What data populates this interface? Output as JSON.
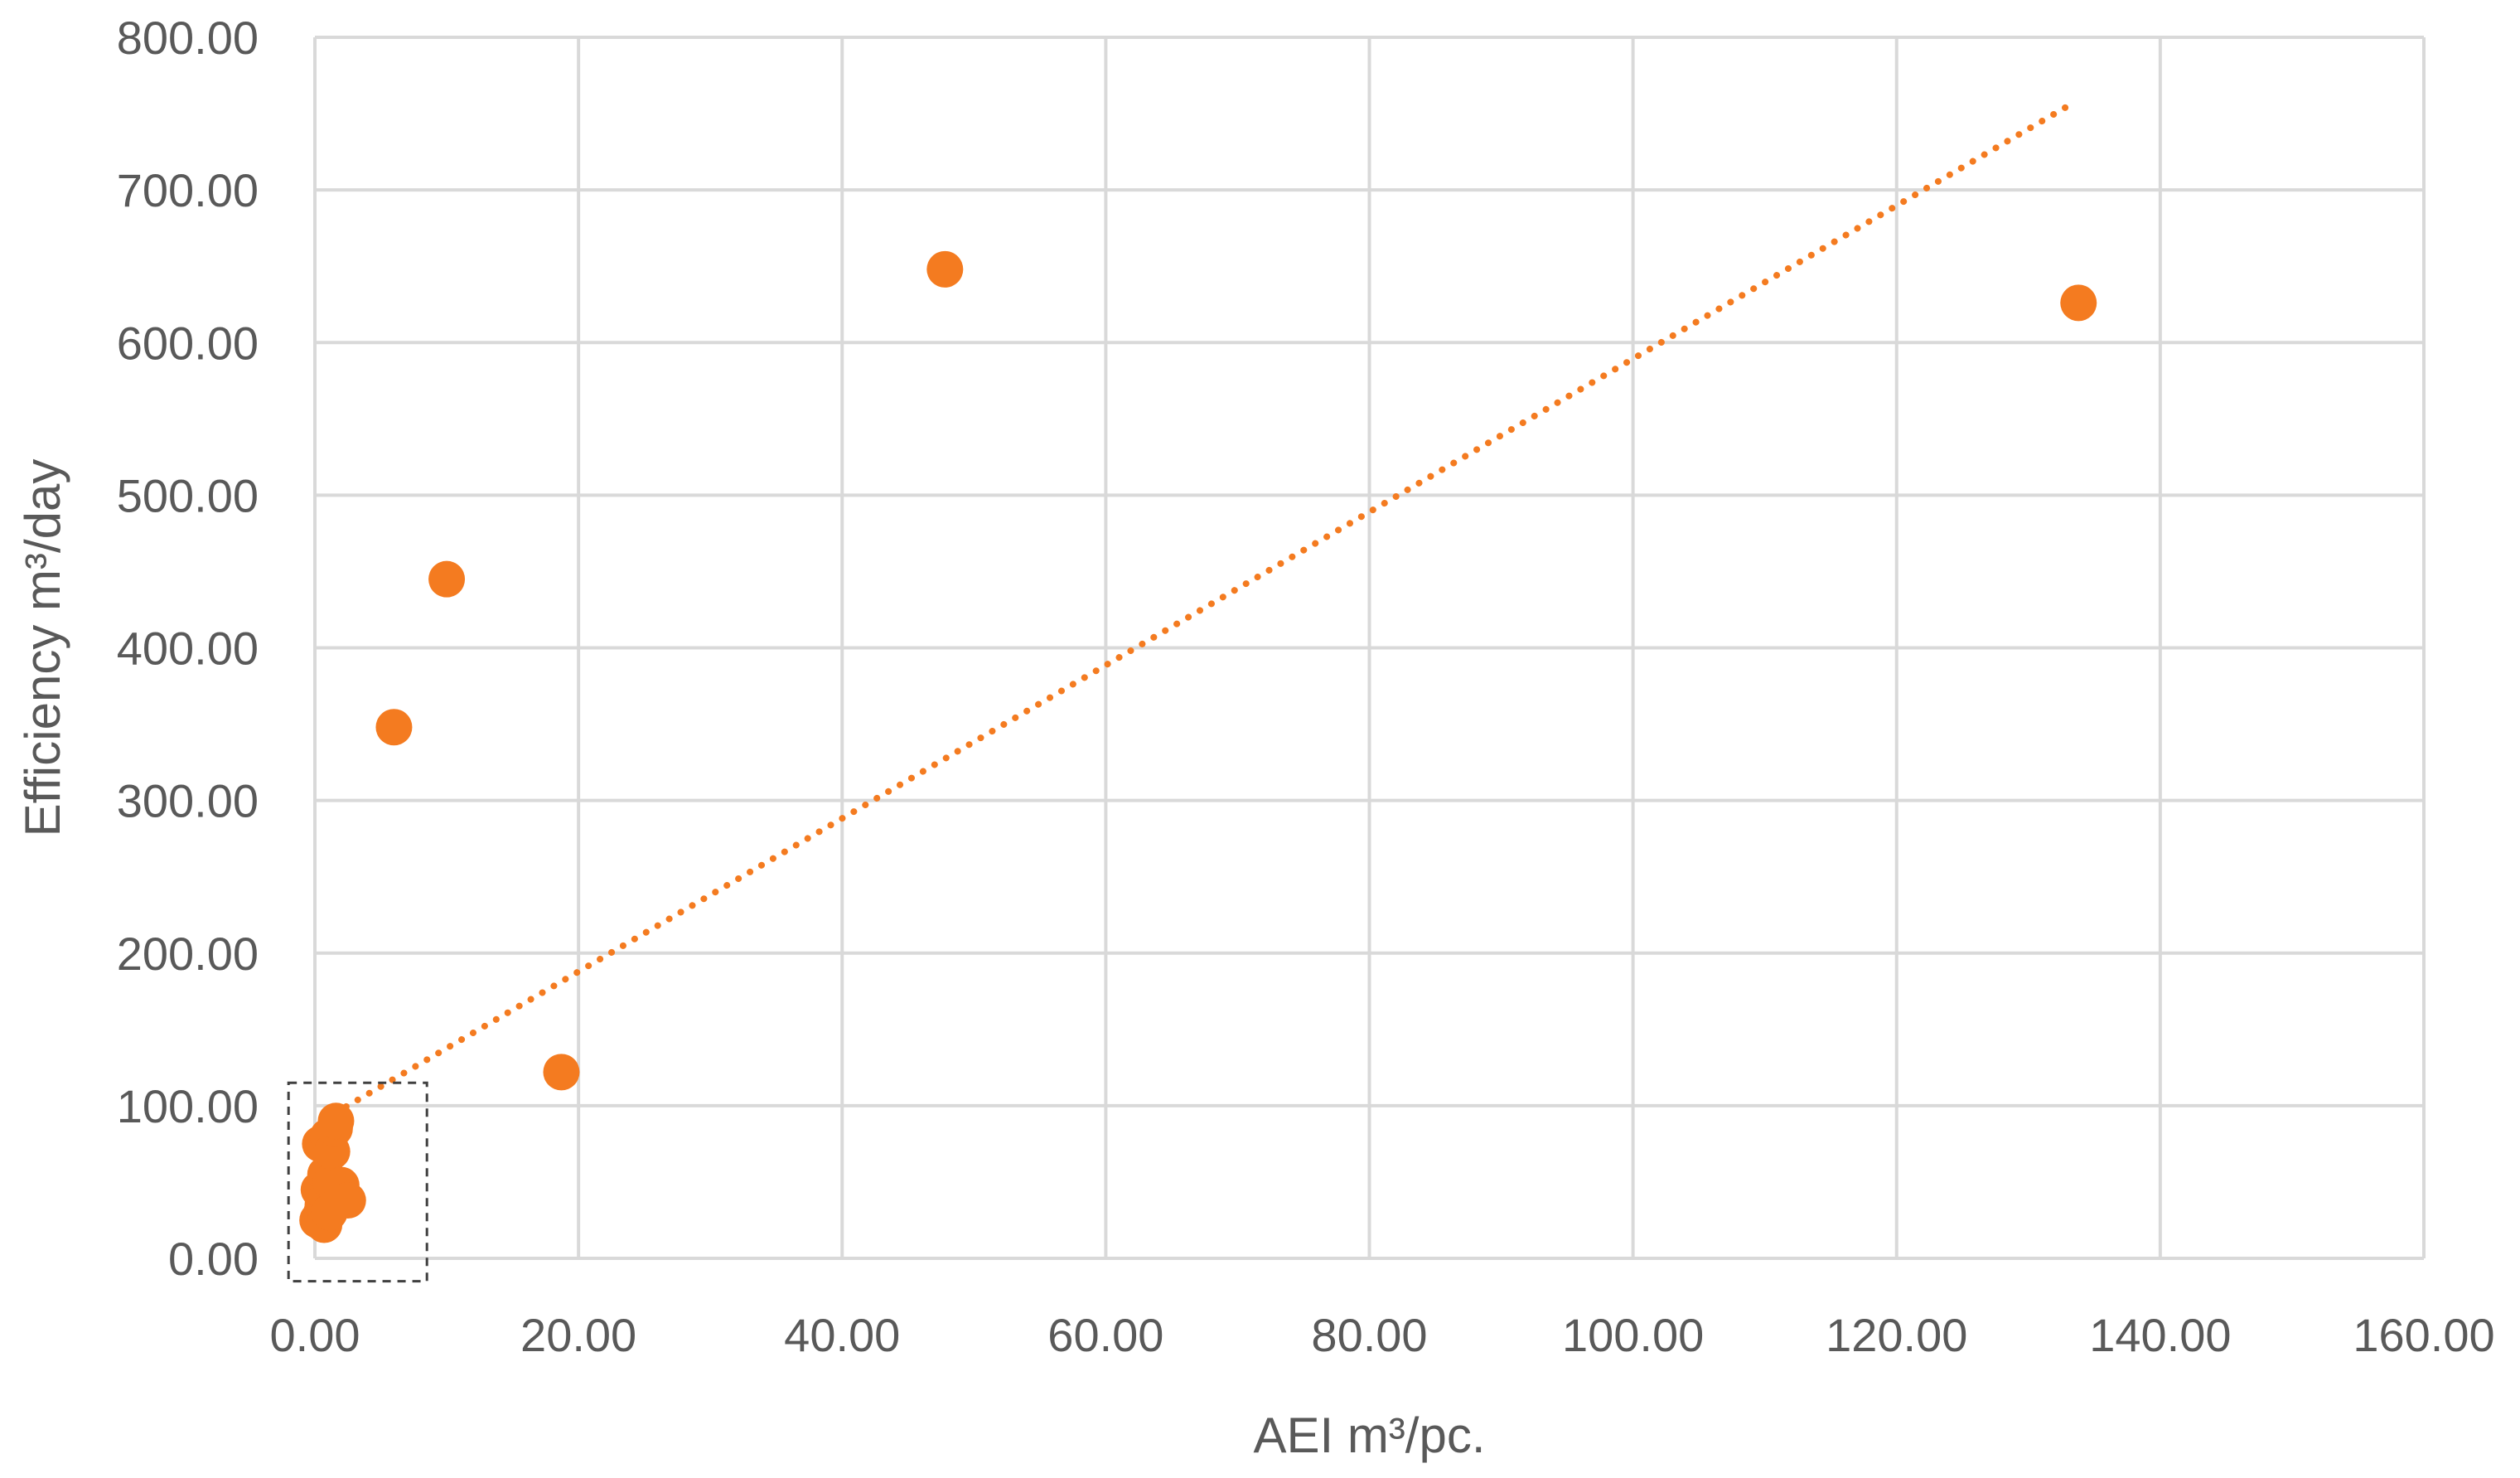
{
  "chart_data": {
    "type": "scatter",
    "title": "",
    "xlabel": "AEI  m³/pc.",
    "ylabel": "Efficiency m³/day",
    "xlim": [
      0,
      160
    ],
    "ylim": [
      0,
      800
    ],
    "x_ticks": [
      "0.00",
      "20.00",
      "40.00",
      "60.00",
      "80.00",
      "100.00",
      "120.00",
      "140.00",
      "160.00"
    ],
    "y_ticks": [
      "0.00",
      "100.00",
      "200.00",
      "300.00",
      "400.00",
      "500.00",
      "600.00",
      "700.00",
      "800.00"
    ],
    "grid": true,
    "legend": "none",
    "marker_color": "#F47B20",
    "trendline_color": "#F47B20",
    "series": [
      {
        "points": [
          {
            "x": 0.2,
            "y": 25
          },
          {
            "x": 0.3,
            "y": 45
          },
          {
            "x": 0.4,
            "y": 75
          },
          {
            "x": 0.5,
            "y": 30
          },
          {
            "x": 0.6,
            "y": 35
          },
          {
            "x": 0.7,
            "y": 22
          },
          {
            "x": 0.8,
            "y": 55
          },
          {
            "x": 0.9,
            "y": 40
          },
          {
            "x": 1.0,
            "y": 80
          },
          {
            "x": 1.1,
            "y": 30
          },
          {
            "x": 1.2,
            "y": 50
          },
          {
            "x": 1.3,
            "y": 70
          },
          {
            "x": 1.5,
            "y": 85
          },
          {
            "x": 1.6,
            "y": 90
          },
          {
            "x": 1.7,
            "y": 45
          },
          {
            "x": 2.0,
            "y": 48
          },
          {
            "x": 2.5,
            "y": 38
          },
          {
            "x": 6.0,
            "y": 348
          },
          {
            "x": 10.0,
            "y": 445
          },
          {
            "x": 18.7,
            "y": 122
          },
          {
            "x": 47.8,
            "y": 648
          },
          {
            "x": 133.8,
            "y": 626
          }
        ]
      }
    ],
    "trendline": {
      "style": "dotted",
      "x": [
        1.5,
        133.6
      ],
      "y": [
        95,
        758
      ]
    },
    "highlight_box": {
      "x": [
        -2,
        8.5
      ],
      "y": [
        -15,
        115
      ],
      "style": "dashed"
    }
  }
}
